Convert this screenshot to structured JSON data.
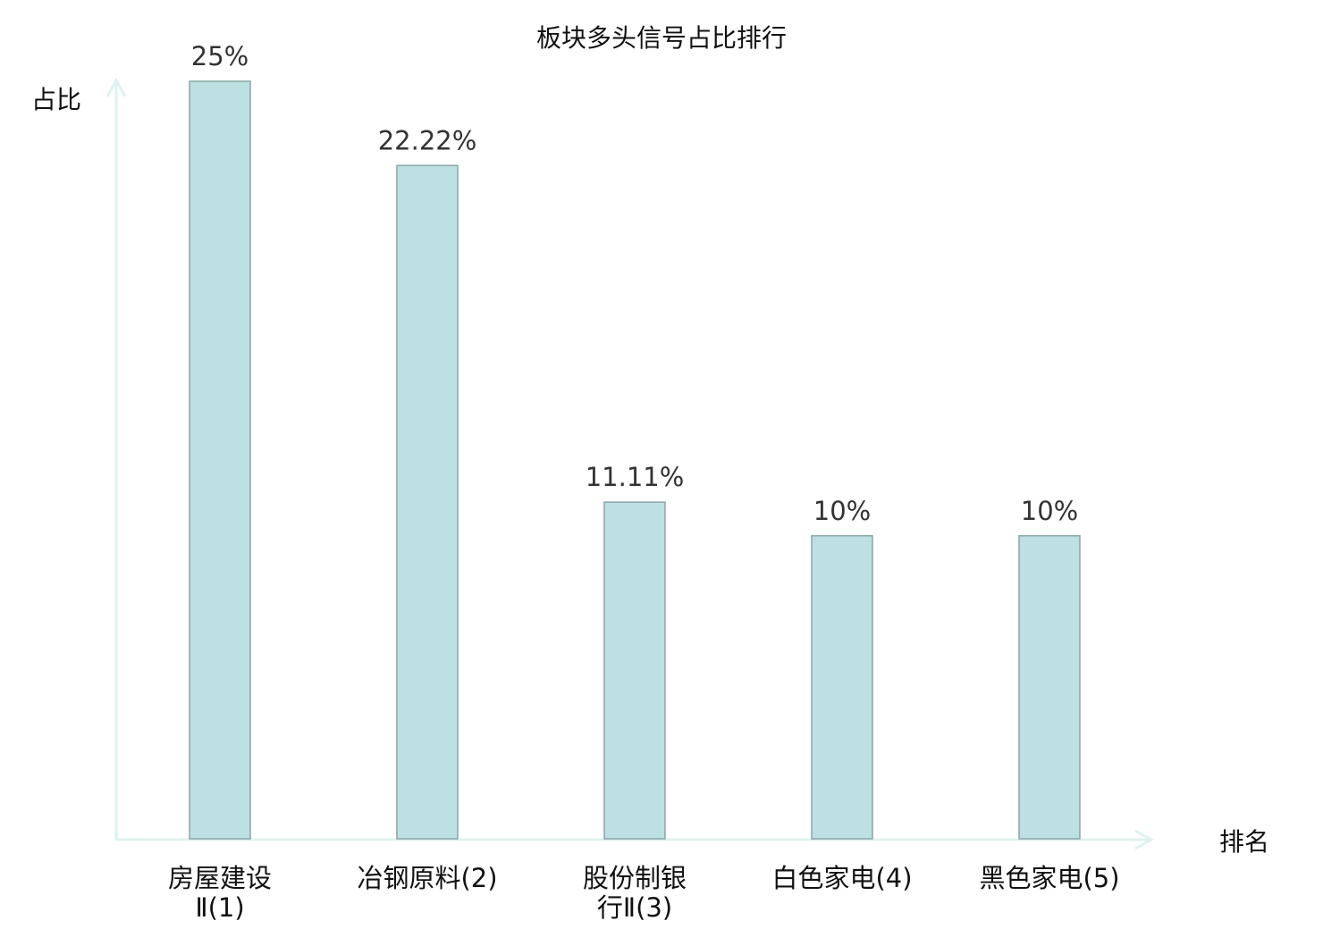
{
  "chart_data": {
    "type": "bar",
    "title": "板块多头信号占比排行",
    "xlabel": "排名",
    "ylabel": "占比",
    "categories": [
      "房屋建设Ⅱ(1)",
      "冶钢原料(2)",
      "股份制银行Ⅱ(3)",
      "白色家电(4)",
      "黑色家电(5)"
    ],
    "values": [
      25,
      22.22,
      11.11,
      10,
      10
    ],
    "value_labels": [
      "25%",
      "22.22%",
      "11.11%",
      "10%",
      "10%"
    ],
    "ylim": [
      0,
      25
    ],
    "grid": false,
    "highlight_category_index": 0,
    "colors": {
      "bar_fill": "#bde0e2",
      "bar_stroke": "#8aa5a5",
      "axis": "#dff2ef",
      "highlight_label": "#e8141b",
      "label": "#111111"
    }
  }
}
